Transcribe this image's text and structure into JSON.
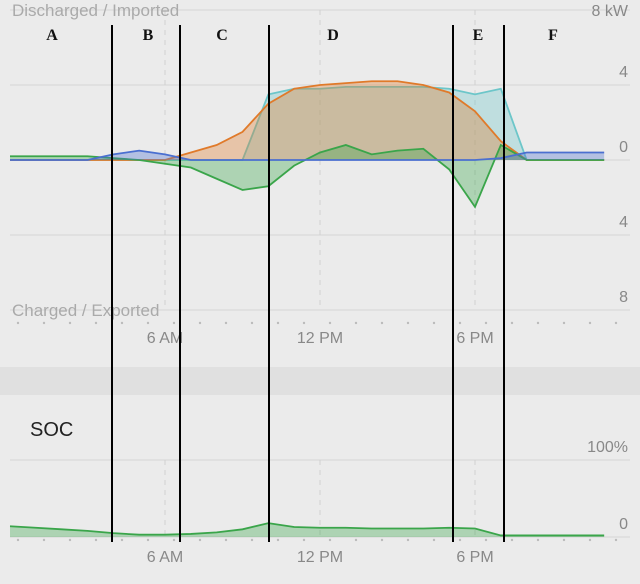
{
  "chart_data": [
    {
      "type": "area",
      "y_label_top": "Discharged / Imported",
      "y_label_bottom": "Charged / Exported",
      "annotations": [
        "A",
        "B",
        "C",
        "D",
        "E",
        "F"
      ],
      "x": [
        0,
        1,
        2,
        3,
        4,
        5,
        6,
        7,
        8,
        9,
        10,
        11,
        12,
        13,
        14,
        15,
        16,
        17,
        18,
        19,
        20,
        21,
        22,
        23
      ],
      "xlim": [
        0,
        24
      ],
      "xticks": [
        {
          "value": 6,
          "label": "6 AM"
        },
        {
          "value": 12,
          "label": "12 PM"
        },
        {
          "value": 18,
          "label": "6 PM"
        }
      ],
      "ylim": [
        -8,
        8
      ],
      "yticks": [
        {
          "value": 8,
          "label": "8 kW"
        },
        4,
        0,
        {
          "value": -4,
          "label": "4"
        },
        {
          "value": -8,
          "label": "8"
        }
      ],
      "series": [
        {
          "color": "#6cc6c9",
          "values": [
            0,
            0,
            0,
            0,
            0,
            0,
            0,
            0,
            0,
            0,
            3.5,
            3.8,
            3.8,
            3.9,
            3.9,
            3.9,
            3.9,
            3.8,
            3.5,
            3.8,
            0,
            0,
            0,
            0
          ]
        },
        {
          "color": "#e07a2a",
          "values": [
            0,
            0,
            0,
            0,
            0,
            0,
            0,
            0.4,
            0.8,
            1.5,
            3,
            3.8,
            4,
            4.1,
            4.2,
            4.2,
            4,
            3.6,
            2.6,
            1,
            0,
            0,
            0,
            0
          ]
        },
        {
          "color": "#3aa54a",
          "values": [
            0.2,
            0.2,
            0.2,
            0.2,
            0.1,
            0,
            -0.2,
            -0.4,
            -1,
            -1.6,
            -1.4,
            -0.3,
            0.4,
            0.8,
            0.3,
            0.5,
            0.6,
            -0.5,
            -2.5,
            0.8,
            0,
            0,
            0,
            0
          ]
        },
        {
          "color": "#4a6fd0",
          "values": [
            0,
            0,
            0,
            0,
            0.3,
            0.5,
            0.3,
            0,
            0,
            0,
            0,
            0,
            0,
            0,
            0,
            0,
            0,
            0,
            0,
            0.1,
            0.4,
            0.4,
            0.4,
            0.4
          ]
        }
      ]
    },
    {
      "type": "area",
      "title": "SOC",
      "x": [
        0,
        1,
        2,
        3,
        4,
        5,
        6,
        7,
        8,
        9,
        10,
        11,
        12,
        13,
        14,
        15,
        16,
        17,
        18,
        19,
        20,
        21,
        22,
        23
      ],
      "xlim": [
        0,
        24
      ],
      "xticks": [
        {
          "value": 6,
          "label": "6 AM"
        },
        {
          "value": 12,
          "label": "12 PM"
        },
        {
          "value": 18,
          "label": "6 PM"
        }
      ],
      "ylim": [
        0,
        100
      ],
      "yticks": [
        {
          "value": 100,
          "label": "100%"
        },
        0
      ],
      "series": [
        {
          "color": "#3aa54a",
          "values": [
            14,
            12,
            10,
            8,
            5,
            3,
            3,
            4,
            6,
            10,
            18,
            13,
            12,
            12,
            11,
            11,
            11,
            12,
            11,
            2,
            2,
            2,
            2,
            2
          ]
        }
      ]
    }
  ]
}
